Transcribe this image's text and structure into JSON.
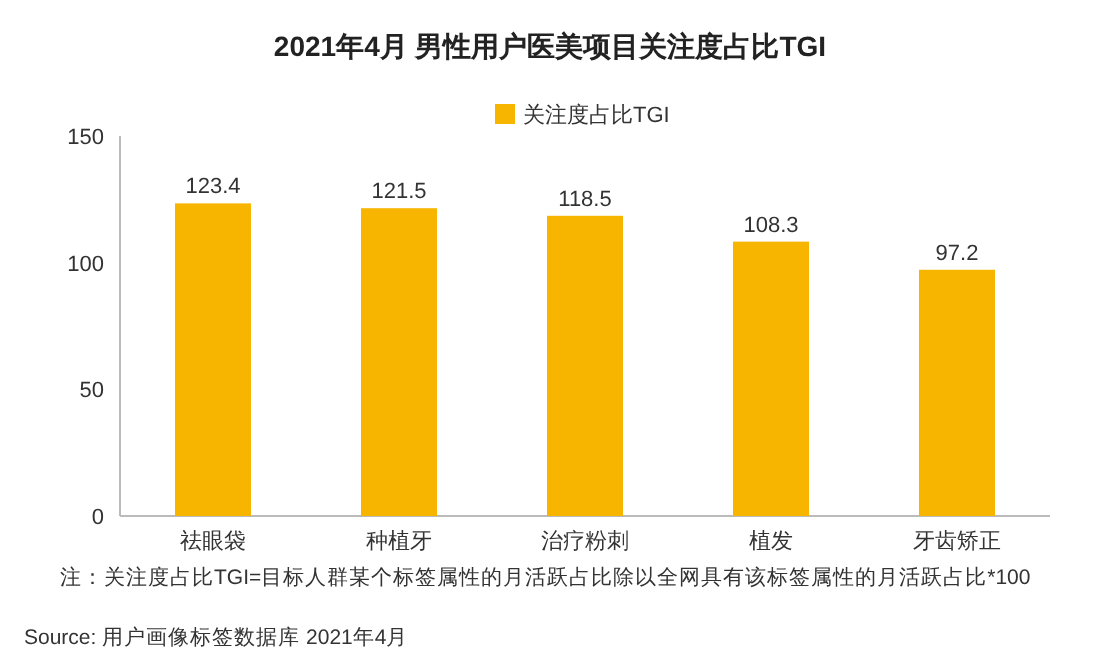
{
  "chart_data": {
    "type": "bar",
    "title": "2021年4月 男性用户医美项目关注度占比TGI",
    "categories": [
      "祛眼袋",
      "种植牙",
      "治疗粉刺",
      "植发",
      "牙齿矫正"
    ],
    "series": [
      {
        "name": "关注度占比TGI",
        "color": "#f7b500",
        "values": [
          123.4,
          121.5,
          118.5,
          108.3,
          97.2
        ]
      }
    ],
    "ylim": [
      0,
      150
    ],
    "yticks": [
      0,
      50,
      100,
      150
    ],
    "grid": false,
    "legend": "top",
    "data_labels": true,
    "annotations": [
      "注：关注度占比TGI=目标人群某个标签属性的月活跃占比除以全网具有该标签属性的月活跃占比*100",
      "Source: 用户画像标签数据库 2021年4月"
    ]
  }
}
